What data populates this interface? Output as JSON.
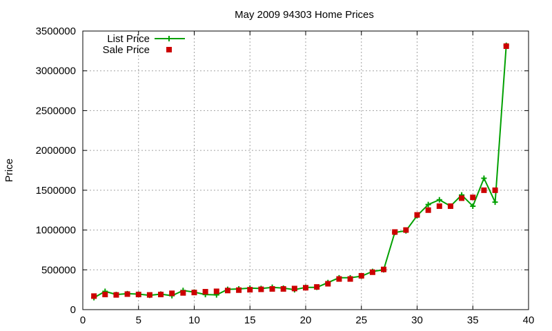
{
  "chart_data": {
    "type": "line",
    "title": "May 2009 94303 Home Prices",
    "xlabel": "",
    "ylabel": "Price",
    "xlim": [
      0,
      40
    ],
    "ylim": [
      0,
      3500000
    ],
    "xticks": [
      0,
      5,
      10,
      15,
      20,
      25,
      30,
      35,
      40
    ],
    "yticks": [
      0,
      500000,
      1000000,
      1500000,
      2000000,
      2500000,
      3000000,
      3500000
    ],
    "grid": true,
    "legend": "top-left",
    "colors": {
      "list": "#00a000",
      "sale": "#cc0000"
    },
    "series": [
      {
        "name": "List Price",
        "style": "line-plus",
        "x": [
          1,
          2,
          3,
          4,
          5,
          6,
          7,
          8,
          9,
          10,
          11,
          12,
          13,
          14,
          15,
          16,
          17,
          18,
          19,
          20,
          21,
          22,
          23,
          24,
          25,
          26,
          27,
          28,
          29,
          30,
          31,
          32,
          33,
          34,
          35,
          36,
          37,
          38
        ],
        "values": [
          150000,
          230000,
          190000,
          200000,
          195000,
          180000,
          195000,
          175000,
          240000,
          220000,
          190000,
          185000,
          255000,
          260000,
          270000,
          265000,
          280000,
          270000,
          250000,
          280000,
          280000,
          340000,
          400000,
          400000,
          420000,
          480000,
          500000,
          970000,
          990000,
          1180000,
          1320000,
          1380000,
          1300000,
          1440000,
          1300000,
          1650000,
          1350000,
          3320000
        ]
      },
      {
        "name": "Sale Price",
        "style": "square",
        "x": [
          1,
          2,
          3,
          4,
          5,
          6,
          7,
          8,
          9,
          10,
          11,
          12,
          13,
          14,
          15,
          16,
          17,
          18,
          19,
          20,
          21,
          22,
          23,
          24,
          25,
          26,
          27,
          28,
          29,
          30,
          31,
          32,
          33,
          34,
          35,
          36,
          37,
          38
        ],
        "values": [
          170000,
          190000,
          185000,
          195000,
          190000,
          185000,
          190000,
          205000,
          210000,
          215000,
          225000,
          230000,
          240000,
          245000,
          250000,
          255000,
          260000,
          260000,
          265000,
          275000,
          285000,
          325000,
          385000,
          385000,
          425000,
          470000,
          505000,
          975000,
          1000000,
          1190000,
          1250000,
          1300000,
          1300000,
          1400000,
          1410000,
          1500000,
          1500000,
          3310000
        ]
      }
    ]
  }
}
